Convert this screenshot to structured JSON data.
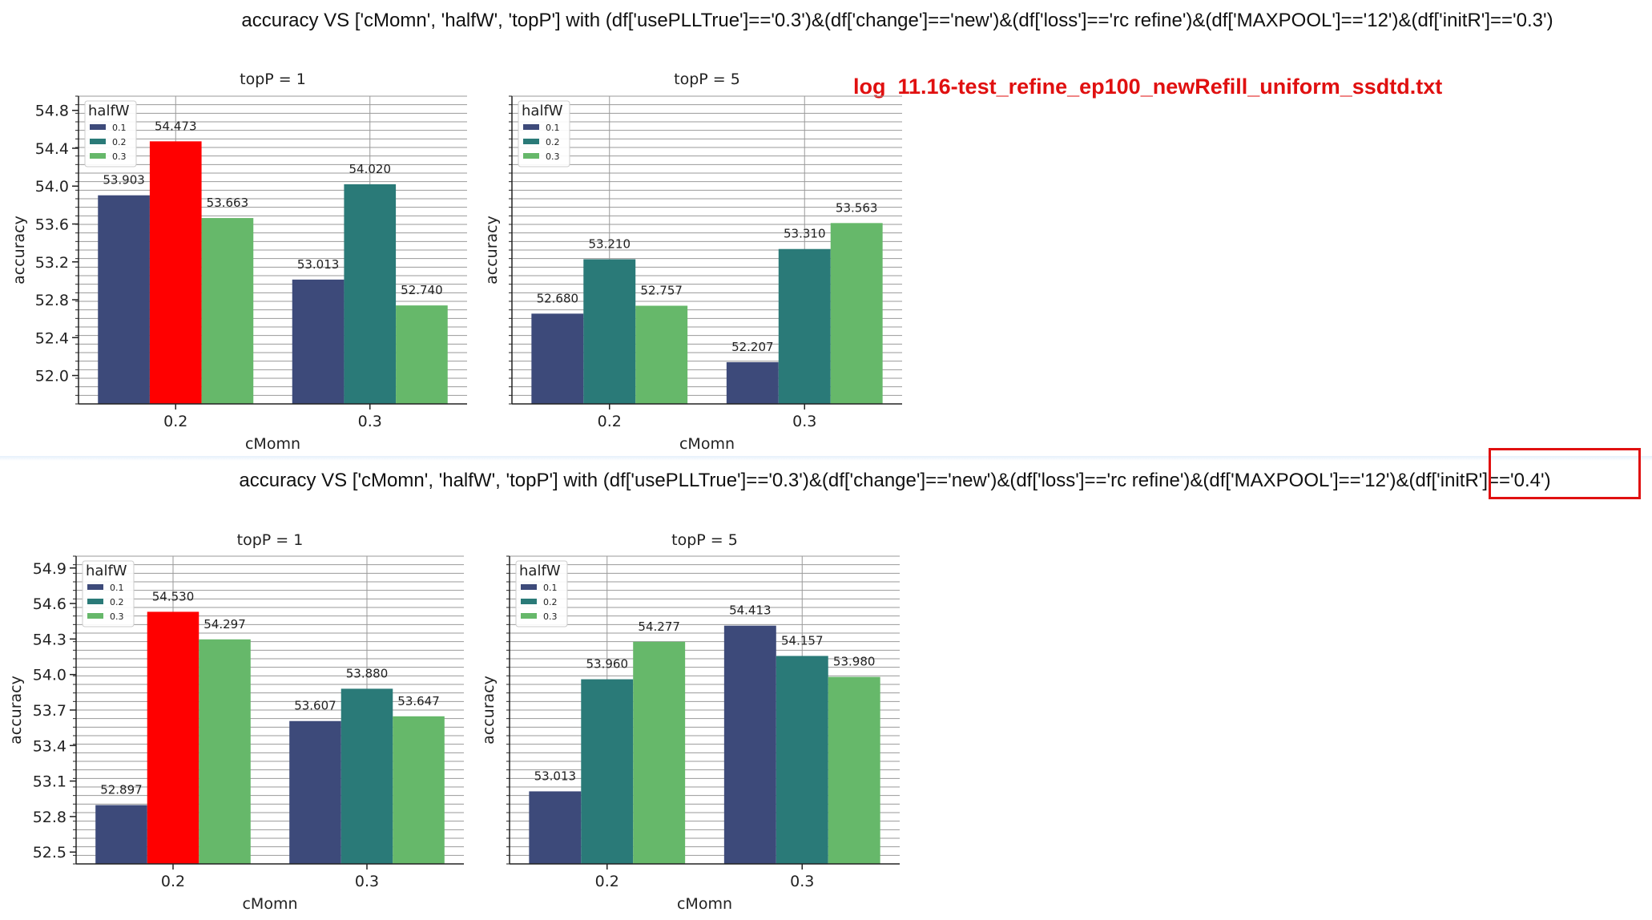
{
  "window": {
    "log_name": "log_11.16-test_refine_ep100_newRefill_uniform_ssdtd.txt"
  },
  "colors": {
    "halfW_0.1": "#3d4a7a",
    "halfW_0.2": "#2a7a78",
    "halfW_0.3": "#66b86a",
    "highlight": "#ff0000",
    "annotation_red": "#e01010"
  },
  "figures": [
    {
      "title": "accuracy VS ['cMomn', 'halfW', 'topP'] with (df['usePLLTrue']=='0.3')&(df['change']=='new')&(df['loss']=='rc refine')&(df['MAXPOOL']=='12')&(df['initR']=='0.3')"
    },
    {
      "title": "accuracy VS ['cMomn', 'halfW', 'topP'] with (df['usePLLTrue']=='0.3')&(df['change']=='new')&(df['loss']=='rc refine')&(df['MAXPOOL']=='12')&(df['initR']=='0.4')"
    }
  ],
  "chart_data": [
    {
      "type": "bar",
      "title": "topP = 1",
      "xlabel": "cMomn",
      "ylabel": "accuracy",
      "categories": [
        "0.2",
        "0.3"
      ],
      "legend_title": "halfW",
      "legend_position": "top-left",
      "grid": true,
      "ylim": [
        51.7,
        54.95
      ],
      "yticks": [
        "52.0",
        "52.4",
        "52.8",
        "53.2",
        "53.6",
        "54.0",
        "54.4",
        "54.8"
      ],
      "series": [
        {
          "name": "0.1",
          "values": [
            53.903,
            53.013
          ],
          "labels": [
            "53.903",
            "53.013"
          ]
        },
        {
          "name": "0.2",
          "values": [
            54.473,
            54.02
          ],
          "labels": [
            "54.473",
            "54.020"
          ]
        },
        {
          "name": "0.3",
          "values": [
            53.663,
            52.74
          ],
          "labels": [
            "53.663",
            "52.740"
          ]
        }
      ],
      "highlight": {
        "series": 1,
        "category": 0
      }
    },
    {
      "type": "bar",
      "title": "topP = 5",
      "xlabel": "cMomn",
      "ylabel": "accuracy",
      "categories": [
        "0.2",
        "0.3"
      ],
      "legend_title": "halfW",
      "legend_position": "top-left",
      "grid": true,
      "ylim": [
        51.8,
        54.8
      ],
      "yticks": [],
      "series": [
        {
          "name": "0.1",
          "values": [
            52.68,
            52.207
          ],
          "labels": [
            "52.680",
            "52.207"
          ]
        },
        {
          "name": "0.2",
          "values": [
            53.21,
            53.31
          ],
          "labels": [
            "53.210",
            "53.310"
          ]
        },
        {
          "name": "0.3",
          "values": [
            52.757,
            53.563
          ],
          "labels": [
            "52.757",
            "53.563"
          ]
        }
      ]
    },
    {
      "type": "bar",
      "title": "topP = 1",
      "xlabel": "cMomn",
      "ylabel": "accuracy",
      "categories": [
        "0.2",
        "0.3"
      ],
      "legend_title": "halfW",
      "legend_position": "top-left",
      "grid": true,
      "ylim": [
        52.4,
        55.0
      ],
      "yticks": [
        "52.5",
        "52.8",
        "53.1",
        "53.4",
        "53.7",
        "54.0",
        "54.3",
        "54.6",
        "54.9"
      ],
      "series": [
        {
          "name": "0.1",
          "values": [
            52.897,
            53.607
          ],
          "labels": [
            "52.897",
            "53.607"
          ]
        },
        {
          "name": "0.2",
          "values": [
            54.53,
            53.88
          ],
          "labels": [
            "54.530",
            "53.880"
          ]
        },
        {
          "name": "0.3",
          "values": [
            54.297,
            53.647
          ],
          "labels": [
            "54.297",
            "53.647"
          ]
        }
      ],
      "highlight": {
        "series": 1,
        "category": 0
      }
    },
    {
      "type": "bar",
      "title": "topP = 5",
      "xlabel": "cMomn",
      "ylabel": "accuracy",
      "categories": [
        "0.2",
        "0.3"
      ],
      "legend_title": "halfW",
      "legend_position": "top-left",
      "grid": true,
      "ylim": [
        52.4,
        55.0
      ],
      "yticks": [],
      "series": [
        {
          "name": "0.1",
          "values": [
            53.013,
            54.413
          ],
          "labels": [
            "53.013",
            "54.413"
          ]
        },
        {
          "name": "0.2",
          "values": [
            53.96,
            54.157
          ],
          "labels": [
            "53.960",
            "54.157"
          ]
        },
        {
          "name": "0.3",
          "values": [
            54.277,
            53.98
          ],
          "labels": [
            "54.277",
            "53.980"
          ]
        }
      ]
    }
  ]
}
